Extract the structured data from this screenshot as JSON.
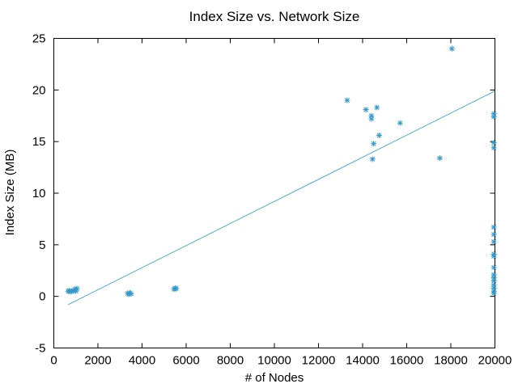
{
  "chart_data": {
    "type": "scatter",
    "title": "Index Size vs. Network Size",
    "xlabel": "# of Nodes",
    "ylabel": "Index Size (MB)",
    "xlim": [
      0,
      20000
    ],
    "ylim": [
      -5,
      25
    ],
    "xticks": [
      0,
      2000,
      4000,
      6000,
      8000,
      10000,
      12000,
      14000,
      16000,
      18000,
      20000
    ],
    "yticks": [
      -5,
      0,
      5,
      10,
      15,
      20,
      25
    ],
    "grid": false,
    "marker": "asterisk",
    "color": "#3399cc",
    "points": [
      {
        "x": 650,
        "y": 0.5
      },
      {
        "x": 700,
        "y": 0.55
      },
      {
        "x": 750,
        "y": 0.45
      },
      {
        "x": 800,
        "y": 0.5
      },
      {
        "x": 900,
        "y": 0.55
      },
      {
        "x": 950,
        "y": 0.7
      },
      {
        "x": 1000,
        "y": 0.5
      },
      {
        "x": 1050,
        "y": 0.75
      },
      {
        "x": 3350,
        "y": 0.3
      },
      {
        "x": 3400,
        "y": 0.2
      },
      {
        "x": 3450,
        "y": 0.35
      },
      {
        "x": 3500,
        "y": 0.25
      },
      {
        "x": 5450,
        "y": 0.7
      },
      {
        "x": 5500,
        "y": 0.8
      },
      {
        "x": 5550,
        "y": 0.75
      },
      {
        "x": 13300,
        "y": 19.0
      },
      {
        "x": 14150,
        "y": 18.1
      },
      {
        "x": 14400,
        "y": 17.5
      },
      {
        "x": 14400,
        "y": 17.2
      },
      {
        "x": 14650,
        "y": 18.3
      },
      {
        "x": 14500,
        "y": 14.8
      },
      {
        "x": 14750,
        "y": 15.6
      },
      {
        "x": 14450,
        "y": 13.3
      },
      {
        "x": 15700,
        "y": 16.8
      },
      {
        "x": 17500,
        "y": 13.4
      },
      {
        "x": 18050,
        "y": 24.0
      },
      {
        "x": 19950,
        "y": 17.7
      },
      {
        "x": 19950,
        "y": 17.4
      },
      {
        "x": 19950,
        "y": 14.9
      },
      {
        "x": 19950,
        "y": 14.4
      },
      {
        "x": 19950,
        "y": 6.7
      },
      {
        "x": 19950,
        "y": 6.0
      },
      {
        "x": 19950,
        "y": 5.3
      },
      {
        "x": 19950,
        "y": 4.1
      },
      {
        "x": 19950,
        "y": 3.9
      },
      {
        "x": 19950,
        "y": 2.8
      },
      {
        "x": 19950,
        "y": 2.1
      },
      {
        "x": 19950,
        "y": 1.8
      },
      {
        "x": 19950,
        "y": 1.5
      },
      {
        "x": 19950,
        "y": 1.1
      },
      {
        "x": 19950,
        "y": 0.8
      },
      {
        "x": 19950,
        "y": 0.5
      },
      {
        "x": 19950,
        "y": 0.3
      }
    ],
    "trendline": {
      "x": [
        650,
        20000
      ],
      "y": [
        -0.8,
        19.9
      ]
    }
  }
}
